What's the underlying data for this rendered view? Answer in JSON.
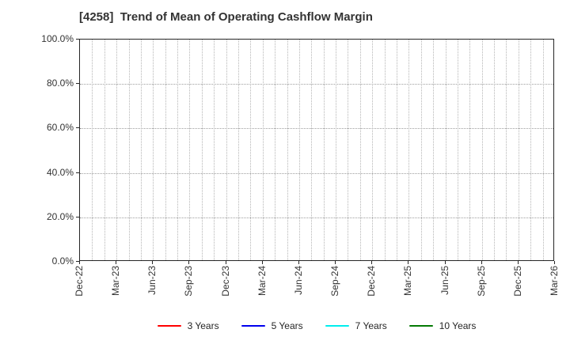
{
  "title": "[4258]  Trend of Mean of Operating Cashflow Margin",
  "chart_data": {
    "type": "line",
    "title": "[4258]  Trend of Mean of Operating Cashflow Margin",
    "xlabel": "",
    "ylabel": "",
    "ylim": [
      0,
      100
    ],
    "y_unit": "%",
    "y_tick_values": [
      0,
      20,
      40,
      60,
      80,
      100
    ],
    "y_tick_labels": [
      "0.0%",
      "20.0%",
      "40.0%",
      "60.0%",
      "80.0%",
      "100.0%"
    ],
    "y_gridline_values": [
      20,
      40,
      60,
      80
    ],
    "x_tick_labels": [
      "Dec-22",
      "Mar-23",
      "Jun-23",
      "Sep-23",
      "Dec-23",
      "Mar-24",
      "Jun-24",
      "Sep-24",
      "Dec-24",
      "Mar-25",
      "Jun-25",
      "Sep-25",
      "Dec-25",
      "Mar-26"
    ],
    "x_months_total": 39,
    "x_months_per_tick": 3,
    "grid": "on",
    "grid_style": "vertical dotted monthly, horizontal dotted at 20% steps",
    "legend_position": "bottom-center",
    "plot_empty": "no data lines drawn within axes",
    "series": [
      {
        "name": "3 Years",
        "color": "#ff0000",
        "values": []
      },
      {
        "name": "5 Years",
        "color": "#0000ee",
        "values": []
      },
      {
        "name": "7 Years",
        "color": "#00eeee",
        "values": []
      },
      {
        "name": "10 Years",
        "color": "#047a04",
        "values": []
      }
    ]
  },
  "colors": {
    "background": "#ffffff",
    "title_text": "#333333",
    "tick_text": "#333333",
    "legend_text": "#262626",
    "axis_spine": "#262626",
    "vgrid": "#b5b5b5",
    "hgrid": "#9e9e9e"
  }
}
